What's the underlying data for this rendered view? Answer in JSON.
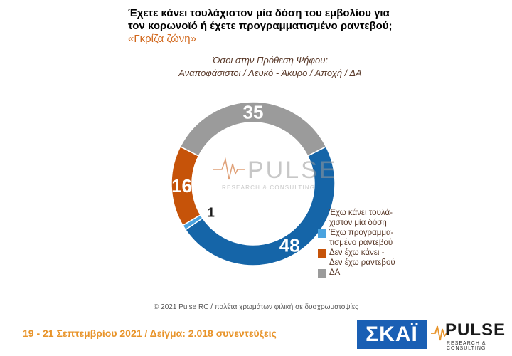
{
  "title": {
    "line1": "Έχετε κάνει τουλάχιστον μία δόση του εμβολίου για",
    "line2": "τον κορωνοϊό ή έχετε προγραμματισμένο ραντεβού;",
    "accent": "«Γκρίζα ζώνη»"
  },
  "subtitle": {
    "line1": "Όσοι στην Πρόθεση Ψήφου:",
    "line2": "Αναποφάσιστοι / Λευκό - Άκυρο / Αποχή / ΔΑ"
  },
  "watermark": {
    "brand": "PULSE",
    "tagline": "RESEARCH & CONSULTING"
  },
  "chart_data": {
    "type": "pie",
    "variant": "donut",
    "title": "Έχετε κάνει τουλάχιστον μία δόση του εμβολίου για τον κορωνοϊό ή έχετε προγραμματισμένο ραντεβού;",
    "slices": [
      {
        "label": "Έχω κάνει τουλάχιστον μία δόση",
        "value": 48,
        "color": "#1565a8"
      },
      {
        "label": "Έχω προγραμματισμένο ραντεβού",
        "value": 1,
        "color": "#4aa3df"
      },
      {
        "label": "Δεν έχω κάνει - Δεν έχω ραντεβού",
        "value": 16,
        "color": "#c65309"
      },
      {
        "label": "ΔΑ",
        "value": 35,
        "color": "#9b9b9b"
      }
    ],
    "legend_position": "right"
  },
  "legend": [
    {
      "line1": "Έχω κάνει τουλά-",
      "line2": "χιστον μία δόση",
      "color": "#1565a8"
    },
    {
      "line1": "Έχω προγραμμα-",
      "line2": "τισμένο ραντεβού",
      "color": "#4aa3df"
    },
    {
      "line1": "Δεν έχω κάνει -",
      "line2": "Δεν έχω ραντεβού",
      "color": "#c65309"
    },
    {
      "line1": "ΔΑ",
      "line2": "",
      "color": "#9b9b9b"
    }
  ],
  "footer_note": "© 2021 Pulse RC   /   παλέτα χρωμάτων φιλική σε δυσχρωματοψίες",
  "date_line": "19 - 21 Σεπτεμβρίου 2021  /  Δείγμα:  2.018 συνεντεύξεις",
  "logos": {
    "skai": "ΣΚΑΪ",
    "pulse": "PULSE",
    "pulse_sub": "RESEARCH & CONSULTING"
  }
}
